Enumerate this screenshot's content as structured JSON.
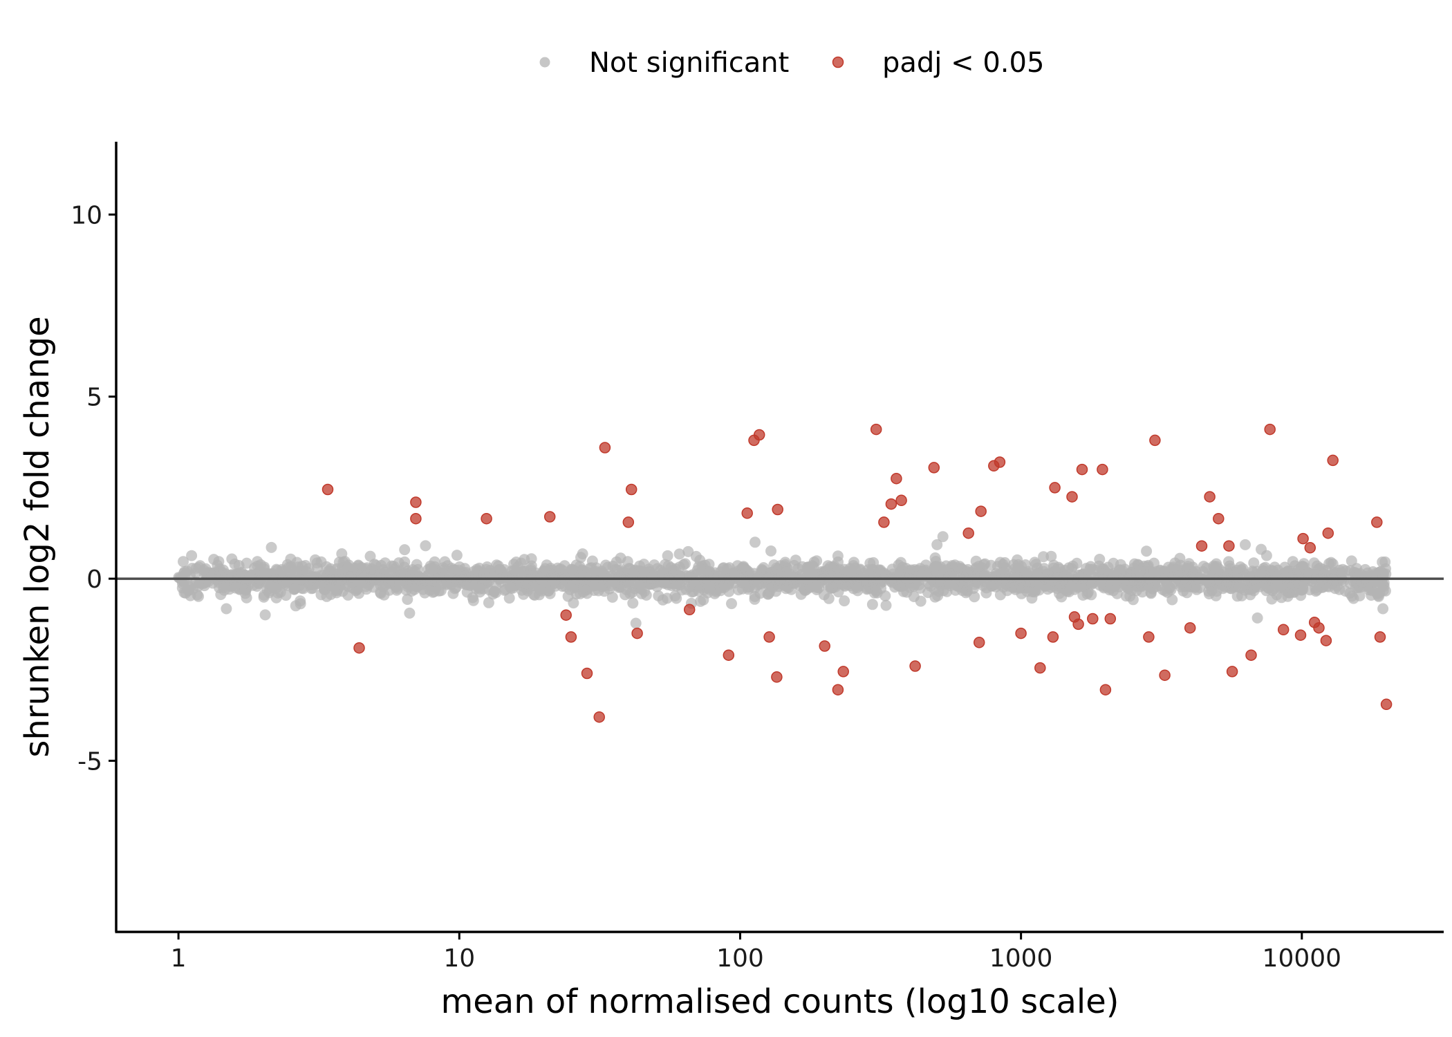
{
  "chart_data": {
    "type": "scatter",
    "xlabel": "mean of normalised counts (log10 scale)",
    "ylabel": "shrunken log2 fold change",
    "x_scale": "log10",
    "xlim": [
      0.6,
      32000
    ],
    "ylim": [
      -9.7,
      12
    ],
    "x_ticks": [
      1,
      10,
      100,
      1000,
      10000
    ],
    "x_tick_labels": [
      "1",
      "10",
      "100",
      "1000",
      "10000"
    ],
    "y_ticks": [
      -5,
      0,
      5,
      10
    ],
    "y_tick_labels": [
      "-5",
      "0",
      "5",
      "10"
    ],
    "reference_line_y": 0,
    "grid": false,
    "legend_position": "top",
    "colors": {
      "not_significant": "#b3b3b3",
      "significant": "#c0392b",
      "zero_line": "#4d4d4d",
      "axis": "#000000"
    },
    "legend": [
      {
        "label": "Not significant",
        "color": "#b3b3b3"
      },
      {
        "label": "padj < 0.05",
        "color": "#c0392b"
      }
    ],
    "not_significant_cloud": {
      "x_range": [
        1,
        20000
      ],
      "approx_point_count": 2500,
      "approx_y_range": [
        -1.4,
        1.4
      ]
    },
    "series": [
      {
        "name": "padj < 0.05",
        "points": [
          [
            3.4,
            2.45
          ],
          [
            4.4,
            -1.9
          ],
          [
            7.0,
            2.1
          ],
          [
            7.0,
            1.65
          ],
          [
            12.5,
            1.65
          ],
          [
            21.0,
            1.7
          ],
          [
            24.0,
            -1.0
          ],
          [
            25.0,
            -1.6
          ],
          [
            28.5,
            -2.6
          ],
          [
            31.5,
            -3.8
          ],
          [
            33.0,
            3.6
          ],
          [
            40.0,
            1.55
          ],
          [
            41.0,
            2.45
          ],
          [
            43.0,
            -1.5
          ],
          [
            66.0,
            -0.85
          ],
          [
            91.0,
            -2.1
          ],
          [
            106.0,
            1.8
          ],
          [
            112.0,
            3.8
          ],
          [
            117.0,
            3.95
          ],
          [
            127.0,
            -1.6
          ],
          [
            135.0,
            -2.7
          ],
          [
            136.0,
            1.9
          ],
          [
            200.0,
            -1.85
          ],
          [
            223.0,
            -3.05
          ],
          [
            233.0,
            -2.55
          ],
          [
            305.0,
            4.1
          ],
          [
            325.0,
            1.55
          ],
          [
            345.0,
            2.05
          ],
          [
            360.0,
            2.75
          ],
          [
            375.0,
            2.15
          ],
          [
            420.0,
            -2.4
          ],
          [
            490.0,
            3.05
          ],
          [
            650.0,
            1.25
          ],
          [
            710.0,
            -1.75
          ],
          [
            720.0,
            1.85
          ],
          [
            800.0,
            3.1
          ],
          [
            840.0,
            3.2
          ],
          [
            1000.0,
            -1.5
          ],
          [
            1170.0,
            -2.45
          ],
          [
            1300.0,
            -1.6
          ],
          [
            1320.0,
            2.5
          ],
          [
            1520.0,
            2.25
          ],
          [
            1550.0,
            -1.05
          ],
          [
            1600.0,
            -1.25
          ],
          [
            1650.0,
            3.0
          ],
          [
            1800.0,
            -1.1
          ],
          [
            1950.0,
            3.0
          ],
          [
            2000.0,
            -3.05
          ],
          [
            2080.0,
            -1.1
          ],
          [
            2850.0,
            -1.6
          ],
          [
            3000.0,
            3.8
          ],
          [
            3250.0,
            -2.65
          ],
          [
            4000.0,
            -1.35
          ],
          [
            4400.0,
            0.9
          ],
          [
            4700.0,
            2.25
          ],
          [
            5050.0,
            1.65
          ],
          [
            5500.0,
            0.9
          ],
          [
            5650.0,
            -2.55
          ],
          [
            6600.0,
            -2.1
          ],
          [
            7700.0,
            4.1
          ],
          [
            8600.0,
            -1.4
          ],
          [
            9900.0,
            -1.55
          ],
          [
            10100.0,
            1.1
          ],
          [
            10700.0,
            0.85
          ],
          [
            11100.0,
            -1.2
          ],
          [
            11500.0,
            -1.35
          ],
          [
            12200.0,
            -1.7
          ],
          [
            12400.0,
            1.25
          ],
          [
            12900.0,
            3.25
          ],
          [
            18500.0,
            1.55
          ],
          [
            19000.0,
            -1.6
          ],
          [
            20000.0,
            -3.45
          ]
        ]
      }
    ]
  }
}
